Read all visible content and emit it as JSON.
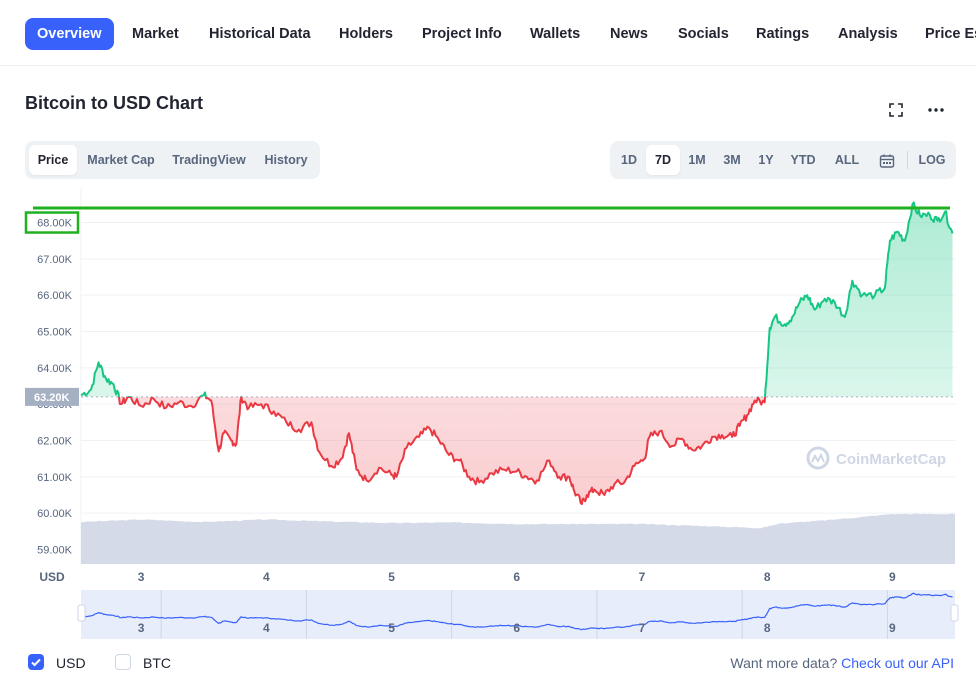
{
  "nav": {
    "tabs": [
      {
        "label": "Overview",
        "active": true
      },
      {
        "label": "Market"
      },
      {
        "label": "Historical Data"
      },
      {
        "label": "Holders"
      },
      {
        "label": "Project Info"
      },
      {
        "label": "Wallets"
      },
      {
        "label": "News"
      },
      {
        "label": "Socials"
      },
      {
        "label": "Ratings"
      },
      {
        "label": "Analysis"
      },
      {
        "label": "Price Es"
      }
    ]
  },
  "header": {
    "title": "Bitcoin to USD Chart",
    "fullscreen_icon": "expand-icon",
    "more_icon": "more-dots-icon"
  },
  "chart_types": {
    "options": [
      "Price",
      "Market Cap",
      "TradingView",
      "History"
    ],
    "active": "Price"
  },
  "ranges": {
    "options": [
      "1D",
      "7D",
      "1M",
      "3M",
      "1Y",
      "YTD",
      "ALL"
    ],
    "active": "7D",
    "calendar_icon": "calendar-icon",
    "log_label": "LOG"
  },
  "colors": {
    "up": "#16c784",
    "down": "#ea3943",
    "volume": "#cfd6e4",
    "navigator": "#3861fb",
    "highlight": "#20b020"
  },
  "chart_data": {
    "type": "line",
    "currency_label": "USD",
    "x_ticks": [
      "3",
      "4",
      "5",
      "6",
      "7",
      "8",
      "9"
    ],
    "y_ticks": [
      "59.00K",
      "60.00K",
      "61.00K",
      "62.00K",
      "63.00K",
      "64.00K",
      "65.00K",
      "66.00K",
      "67.00K",
      "68.00K"
    ],
    "y_range": [
      58600,
      68400
    ],
    "x_range": [
      2.52,
      9.5
    ],
    "reference_price": 63200,
    "reference_label": "63.20K",
    "highlighted_tick": "68.00K",
    "watermark": "CoinMarketCap",
    "series": [
      {
        "values": [
          [
            2.52,
            63250
          ],
          [
            2.6,
            63400
          ],
          [
            2.66,
            64150
          ],
          [
            2.72,
            63700
          ],
          [
            2.78,
            63550
          ],
          [
            2.84,
            63000
          ],
          [
            2.9,
            63200
          ],
          [
            3.0,
            62950
          ],
          [
            3.1,
            63150
          ],
          [
            3.2,
            62900
          ],
          [
            3.3,
            63050
          ],
          [
            3.4,
            62950
          ],
          [
            3.5,
            63250
          ],
          [
            3.56,
            63100
          ],
          [
            3.62,
            61700
          ],
          [
            3.66,
            62200
          ],
          [
            3.72,
            62000
          ],
          [
            3.76,
            61900
          ],
          [
            3.8,
            63200
          ],
          [
            3.86,
            62900
          ],
          [
            3.96,
            63000
          ],
          [
            4.06,
            62800
          ],
          [
            4.16,
            62500
          ],
          [
            4.26,
            62300
          ],
          [
            4.36,
            62500
          ],
          [
            4.42,
            61700
          ],
          [
            4.52,
            61300
          ],
          [
            4.6,
            61500
          ],
          [
            4.66,
            62200
          ],
          [
            4.72,
            61200
          ],
          [
            4.8,
            60900
          ],
          [
            4.9,
            61250
          ],
          [
            5.0,
            61050
          ],
          [
            5.04,
            61000
          ],
          [
            5.12,
            61800
          ],
          [
            5.22,
            62100
          ],
          [
            5.3,
            62350
          ],
          [
            5.38,
            62000
          ],
          [
            5.46,
            61600
          ],
          [
            5.54,
            61450
          ],
          [
            5.62,
            61000
          ],
          [
            5.7,
            60850
          ],
          [
            5.8,
            61100
          ],
          [
            5.9,
            61200
          ],
          [
            6.0,
            61150
          ],
          [
            6.08,
            61000
          ],
          [
            6.16,
            60900
          ],
          [
            6.26,
            61450
          ],
          [
            6.34,
            61000
          ],
          [
            6.42,
            61000
          ],
          [
            6.46,
            60600
          ],
          [
            6.52,
            60250
          ],
          [
            6.56,
            60500
          ],
          [
            6.62,
            60650
          ],
          [
            6.7,
            60500
          ],
          [
            6.78,
            60800
          ],
          [
            6.86,
            60850
          ],
          [
            6.94,
            61300
          ],
          [
            7.02,
            61500
          ],
          [
            7.06,
            62100
          ],
          [
            7.14,
            62250
          ],
          [
            7.24,
            61850
          ],
          [
            7.32,
            62050
          ],
          [
            7.4,
            61750
          ],
          [
            7.48,
            61850
          ],
          [
            7.56,
            62100
          ],
          [
            7.64,
            62150
          ],
          [
            7.72,
            62100
          ],
          [
            7.78,
            62400
          ],
          [
            7.84,
            62700
          ],
          [
            7.9,
            63100
          ],
          [
            7.98,
            63050
          ],
          [
            8.02,
            65100
          ],
          [
            8.06,
            65400
          ],
          [
            8.14,
            65200
          ],
          [
            8.2,
            65400
          ],
          [
            8.26,
            65800
          ],
          [
            8.32,
            66000
          ],
          [
            8.38,
            65600
          ],
          [
            8.46,
            65900
          ],
          [
            8.54,
            65800
          ],
          [
            8.62,
            65400
          ],
          [
            8.68,
            66400
          ],
          [
            8.76,
            66000
          ],
          [
            8.86,
            66000
          ],
          [
            8.94,
            66200
          ],
          [
            8.98,
            67500
          ],
          [
            9.04,
            67750
          ],
          [
            9.1,
            67500
          ],
          [
            9.16,
            68500
          ],
          [
            9.22,
            68200
          ],
          [
            9.3,
            68200
          ],
          [
            9.36,
            68050
          ],
          [
            9.42,
            68300
          ],
          [
            9.48,
            67700
          ]
        ]
      }
    ],
    "volume_relative": [
      [
        2.52,
        0.84
      ],
      [
        3.0,
        0.89
      ],
      [
        3.5,
        0.84
      ],
      [
        4.0,
        0.89
      ],
      [
        4.5,
        0.85
      ],
      [
        5.0,
        0.82
      ],
      [
        5.5,
        0.83
      ],
      [
        6.0,
        0.8
      ],
      [
        6.5,
        0.8
      ],
      [
        7.0,
        0.8
      ],
      [
        7.5,
        0.76
      ],
      [
        7.95,
        0.72
      ],
      [
        8.1,
        0.81
      ],
      [
        8.5,
        0.88
      ],
      [
        9.0,
        1.0
      ],
      [
        9.5,
        1.0
      ]
    ]
  },
  "footer": {
    "currencies": [
      {
        "label": "USD",
        "checked": true
      },
      {
        "label": "BTC",
        "checked": false
      }
    ],
    "more_text": "Want more data?",
    "more_link": "Check out our API"
  }
}
